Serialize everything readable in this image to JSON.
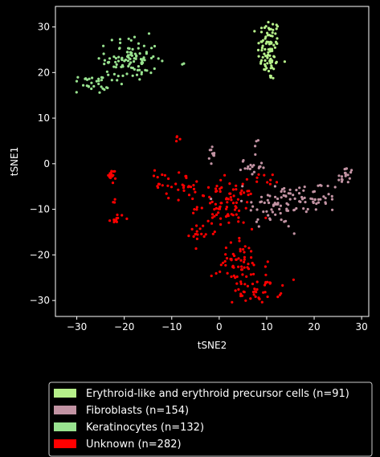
{
  "chart_data": {
    "type": "scatter",
    "xlabel": "tSNE2",
    "ylabel": "tSNE1",
    "xlim": [
      -34.5,
      31.5
    ],
    "ylim": [
      -33.5,
      34.5
    ],
    "xticks": [
      -30,
      -20,
      -10,
      0,
      10,
      20,
      30
    ],
    "yticks": [
      -30,
      -20,
      -10,
      0,
      10,
      20,
      30
    ],
    "grid": false,
    "legend_position": "below-plot",
    "series": [
      {
        "name": "Erythroid-like and erythroid precursor cells (n=91)",
        "color": "#b6f08a",
        "clusters": [
          {
            "cx": 10.5,
            "cy": 25,
            "sx": 1.4,
            "sy": 4.2,
            "n": 91
          }
        ]
      },
      {
        "name": "Fibroblasts (n=154)",
        "color": "#c293a3",
        "clusters": [
          {
            "cx": 12,
            "cy": -9,
            "sx": 4,
            "sy": 3.2,
            "n": 62
          },
          {
            "cx": 20,
            "cy": -7.5,
            "sx": 3.2,
            "sy": 2.2,
            "n": 42
          },
          {
            "cx": 26.5,
            "cy": -3,
            "sx": 1,
            "sy": 1.5,
            "n": 18
          },
          {
            "cx": 7,
            "cy": 0,
            "sx": 1.6,
            "sy": 2.5,
            "n": 22
          },
          {
            "cx": -1.5,
            "cy": 2,
            "sx": 0.3,
            "sy": 1.2,
            "n": 10
          }
        ]
      },
      {
        "name": "Keratinocytes (n=132)",
        "color": "#98e28f",
        "clusters": [
          {
            "cx": -18.5,
            "cy": 23,
            "sx": 3.2,
            "sy": 2.8,
            "n": 100
          },
          {
            "cx": -27,
            "cy": 17.5,
            "sx": 2.2,
            "sy": 1.2,
            "n": 30
          },
          {
            "cx": -7.3,
            "cy": 22,
            "sx": 0.3,
            "sy": 0.3,
            "n": 2
          }
        ]
      },
      {
        "name": "Unknown (n=282)",
        "color": "#ff0000",
        "clusters": [
          {
            "cx": 1.5,
            "cy": -9,
            "sx": 3.5,
            "sy": 3,
            "n": 90
          },
          {
            "cx": 4.5,
            "cy": -22,
            "sx": 3.5,
            "sy": 3,
            "n": 55
          },
          {
            "cx": 8,
            "cy": -27.5,
            "sx": 3,
            "sy": 1.8,
            "n": 45
          },
          {
            "cx": -9,
            "cy": -5,
            "sx": 3,
            "sy": 1.8,
            "n": 30
          },
          {
            "cx": -21.5,
            "cy": -12,
            "sx": 0.8,
            "sy": 0.6,
            "n": 12
          },
          {
            "cx": -22.5,
            "cy": -2.5,
            "sx": 0.5,
            "sy": 0.9,
            "n": 15
          },
          {
            "cx": -4.5,
            "cy": -15,
            "sx": 0.9,
            "sy": 1.1,
            "n": 15
          },
          {
            "cx": -9,
            "cy": 5.5,
            "sx": 0.3,
            "sy": 0.6,
            "n": 4
          },
          {
            "cx": 11,
            "cy": -3.5,
            "sx": 1.5,
            "sy": 0.8,
            "n": 8
          },
          {
            "cx": -22.5,
            "cy": -8,
            "sx": 0.5,
            "sy": 0.3,
            "n": 3
          },
          {
            "cx": -12,
            "cy": -2.5,
            "sx": 1,
            "sy": 0.8,
            "n": 5
          }
        ]
      }
    ]
  }
}
